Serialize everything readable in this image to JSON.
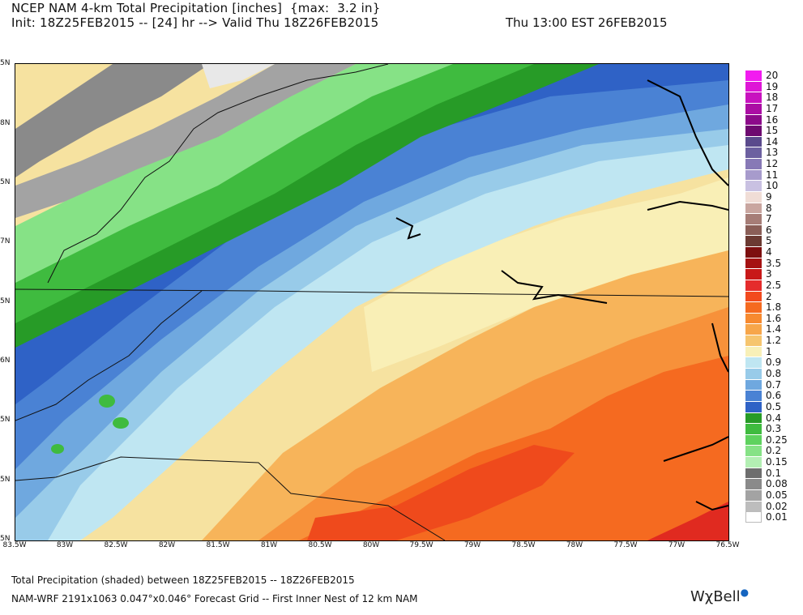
{
  "header": {
    "line1": "NCEP NAM 4-km Total Precipitation [inches]  {max:  3.2 in}",
    "line2": "Init: 18Z25FEB2015 -- [24] hr --> Valid Thu 18Z26FEB2015",
    "line2_right": "Thu 13:00 EST 26FEB2015"
  },
  "axes": {
    "lat_labels": [
      "5N",
      "8N",
      "5N",
      "7N",
      "5N",
      "6N",
      "5N",
      "5N",
      "5N"
    ],
    "lon_labels": [
      "83.5W",
      "83W",
      "82.5W",
      "82W",
      "81.5W",
      "81W",
      "80.5W",
      "80W",
      "79.5W",
      "79W",
      "78.5W",
      "78W",
      "77.5W",
      "77W",
      "76.5W"
    ]
  },
  "colorbar": {
    "levels": [
      {
        "label": "20",
        "color": "#f21bf0"
      },
      {
        "label": "19",
        "color": "#de16d6"
      },
      {
        "label": "18",
        "color": "#c812bf"
      },
      {
        "label": "17",
        "color": "#ab0da4"
      },
      {
        "label": "16",
        "color": "#8c0a8a"
      },
      {
        "label": "15",
        "color": "#6e0a70"
      },
      {
        "label": "14",
        "color": "#5a4a8c"
      },
      {
        "label": "13",
        "color": "#6c60a0"
      },
      {
        "label": "12",
        "color": "#8779b6"
      },
      {
        "label": "11",
        "color": "#a79bcc"
      },
      {
        "label": "10",
        "color": "#c9c1e2"
      },
      {
        "label": "9",
        "color": "#f0ddd6"
      },
      {
        "label": "8",
        "color": "#c9a6a0"
      },
      {
        "label": "7",
        "color": "#a67d77"
      },
      {
        "label": "6",
        "color": "#8a5e57"
      },
      {
        "label": "5",
        "color": "#6b3a32"
      },
      {
        "label": "4",
        "color": "#7d0f0f"
      },
      {
        "label": "3.5",
        "color": "#a51212"
      },
      {
        "label": "3",
        "color": "#c81818"
      },
      {
        "label": "2.5",
        "color": "#e52c2c"
      },
      {
        "label": "2",
        "color": "#f24a1e"
      },
      {
        "label": "1.8",
        "color": "#f56a20"
      },
      {
        "label": "1.6",
        "color": "#f78a30"
      },
      {
        "label": "1.4",
        "color": "#f7a64a"
      },
      {
        "label": "1.2",
        "color": "#f6c56f"
      },
      {
        "label": "1",
        "color": "#f8f0b8"
      },
      {
        "label": "0.9",
        "color": "#bfe6f2"
      },
      {
        "label": "0.8",
        "color": "#98cbe9"
      },
      {
        "label": "0.7",
        "color": "#6fa8df"
      },
      {
        "label": "0.6",
        "color": "#4a82d4"
      },
      {
        "label": "0.5",
        "color": "#2f62c6"
      },
      {
        "label": "0.4",
        "color": "#279b27"
      },
      {
        "label": "0.3",
        "color": "#3fbb3f"
      },
      {
        "label": "0.25",
        "color": "#5ed25e"
      },
      {
        "label": "0.2",
        "color": "#86e286"
      },
      {
        "label": "0.15",
        "color": "#b3efb3"
      },
      {
        "label": "0.1",
        "color": "#6e6e6e"
      },
      {
        "label": "0.08",
        "color": "#8a8a8a"
      },
      {
        "label": "0.05",
        "color": "#a3a3a3"
      },
      {
        "label": "0.02",
        "color": "#bdbdbd"
      },
      {
        "label": "0.01",
        "color": "#ffffff"
      }
    ]
  },
  "footer": {
    "line1": "Total Precipitation (shaded) between 18Z25FEB2015 -- 18Z26FEB2015",
    "line2": "NAM-WRF 2191x1063 0.047°x0.046° Forecast Grid -- First Inner Nest of 12 km NAM",
    "logo": "WχBell"
  }
}
